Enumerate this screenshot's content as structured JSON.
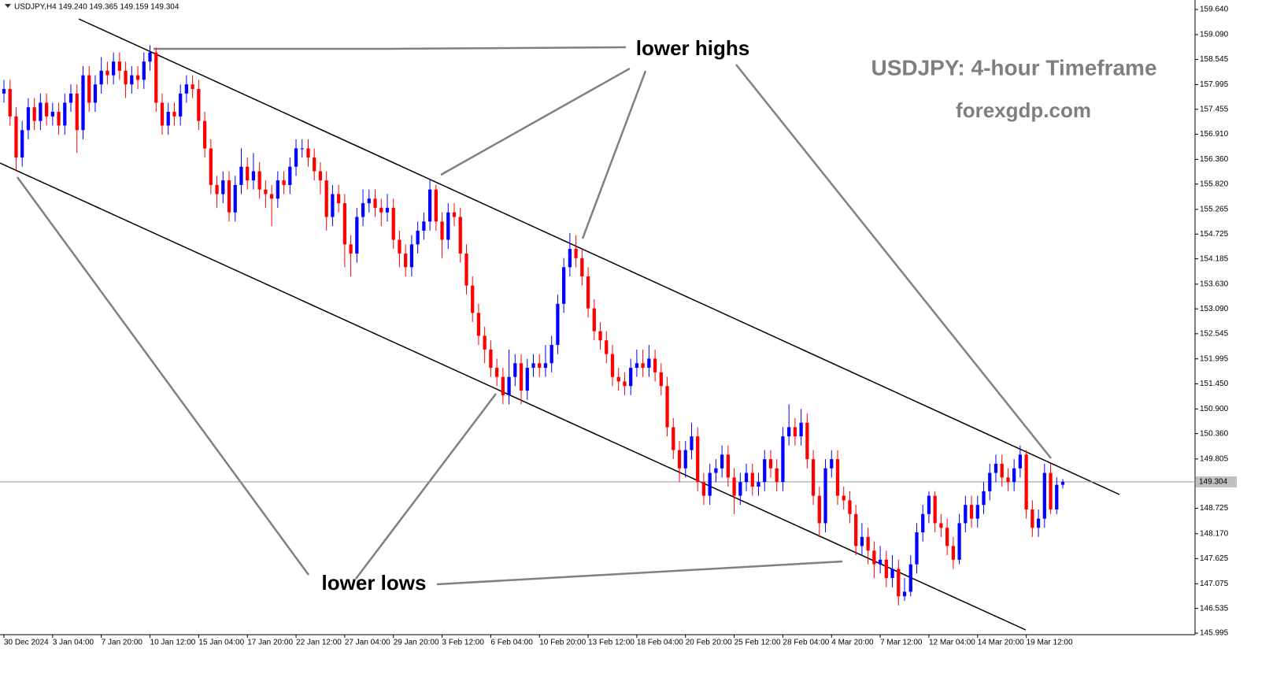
{
  "chart_data": {
    "type": "candlestick",
    "header": "USDJPY,H4  149.240 149.365 149.159 149.304",
    "title": "USDJPY: 4-hour Timeframe",
    "subtitle": "forexgdp.com",
    "annotations": [
      "lower highs",
      "lower lows"
    ],
    "up_color": "#0000ff",
    "down_color": "#ff0000",
    "ylim": [
      145.995,
      159.795
    ],
    "yticks": [
      {
        "value": 159.64,
        "label": "159.640"
      },
      {
        "value": 159.09,
        "label": "159.090"
      },
      158.545,
      157.995,
      157.455,
      {
        "value": 156.91,
        "label": "156.910"
      },
      {
        "value": 156.36,
        "label": "156.360"
      },
      {
        "value": 155.82,
        "label": "155.820"
      },
      155.265,
      154.725,
      154.185,
      {
        "value": 153.63,
        "label": "153.630"
      },
      {
        "value": 153.09,
        "label": "153.090"
      },
      152.545,
      151.995,
      {
        "value": 151.45,
        "label": "151.450"
      },
      {
        "value": 150.9,
        "label": "150.900"
      },
      {
        "value": 150.36,
        "label": "150.360"
      },
      149.805,
      148.725,
      {
        "value": 148.17,
        "label": "148.170"
      },
      147.625,
      147.075,
      146.535,
      145.995
    ],
    "last_price": 149.304,
    "categories": [
      "30 Dec 2024",
      null,
      null,
      null,
      null,
      null,
      null,
      null,
      "3 Jan 04:00",
      null,
      null,
      null,
      null,
      null,
      null,
      null,
      "7 Jan 20:00",
      null,
      null,
      null,
      null,
      null,
      null,
      null,
      "10 Jan 12:00",
      null,
      null,
      null,
      null,
      null,
      null,
      null,
      "15 Jan 04:00",
      null,
      null,
      null,
      null,
      null,
      null,
      null,
      "17 Jan 20:00",
      null,
      null,
      null,
      null,
      null,
      null,
      null,
      "22 Jan 12:00",
      null,
      null,
      null,
      null,
      null,
      null,
      null,
      "27 Jan 04:00",
      null,
      null,
      null,
      null,
      null,
      null,
      null,
      "29 Jan 20:00",
      null,
      null,
      null,
      null,
      null,
      null,
      null,
      "3 Feb 12:00",
      null,
      null,
      null,
      null,
      null,
      null,
      null,
      "6 Feb 04:00",
      null,
      null,
      null,
      null,
      null,
      null,
      null,
      "10 Feb 20:00",
      null,
      null,
      null,
      null,
      null,
      null,
      null,
      "13 Feb 12:00",
      null,
      null,
      null,
      null,
      null,
      null,
      null,
      "18 Feb 04:00",
      null,
      null,
      null,
      null,
      null,
      null,
      null,
      "20 Feb 20:00",
      null,
      null,
      null,
      null,
      null,
      null,
      null,
      "25 Feb 12:00",
      null,
      null,
      null,
      null,
      null,
      null,
      null,
      "28 Feb 04:00",
      null,
      null,
      null,
      null,
      null,
      null,
      null,
      "4 Mar 20:00",
      null,
      null,
      null,
      null,
      null,
      null,
      null,
      "7 Mar 12:00",
      null,
      null,
      null,
      null,
      null,
      null,
      null,
      "12 Mar 04:00",
      null,
      null,
      null,
      null,
      null,
      null,
      null,
      "14 Mar 20:00",
      null,
      null,
      null,
      null,
      null,
      null,
      null,
      "19 Mar 12:00",
      null,
      null,
      null,
      null,
      null,
      null
    ],
    "open": [
      157.8,
      157.9,
      157.3,
      156.4,
      157.0,
      157.5,
      157.2,
      157.6,
      157.3,
      157.4,
      157.1,
      157.6,
      157.8,
      157.0,
      158.2,
      157.6,
      158.0,
      158.3,
      158.2,
      158.5,
      158.3,
      158.0,
      158.2,
      158.1,
      158.5,
      158.7,
      157.6,
      157.1,
      157.4,
      157.3,
      157.8,
      158.0,
      157.9,
      157.2,
      156.6,
      155.8,
      155.6,
      155.9,
      155.2,
      155.8,
      156.2,
      155.9,
      156.1,
      155.7,
      155.6,
      155.5,
      155.9,
      155.8,
      156.2,
      156.6,
      156.6,
      156.4,
      156.1,
      155.9,
      155.1,
      155.6,
      155.4,
      154.5,
      154.3,
      155.1,
      155.4,
      155.5,
      155.3,
      155.2,
      155.3,
      154.6,
      154.3,
      154.0,
      154.5,
      154.8,
      155.0,
      155.7,
      155.0,
      154.6,
      155.2,
      155.1,
      154.3,
      153.6,
      153.0,
      152.5,
      152.2,
      151.8,
      151.6,
      151.2,
      151.6,
      151.9,
      151.3,
      151.8,
      151.9,
      151.8,
      151.9,
      152.3,
      153.2,
      154.0,
      154.4,
      154.2,
      153.8,
      153.1,
      152.6,
      152.4,
      152.1,
      151.6,
      151.5,
      151.4,
      151.8,
      151.9,
      151.8,
      152.0,
      151.7,
      151.4,
      150.5,
      150.0,
      149.6,
      150.0,
      150.3,
      149.3,
      149.0,
      149.5,
      149.6,
      149.9,
      149.4,
      149.0,
      149.3,
      149.5,
      149.2,
      149.3,
      149.8,
      149.6,
      149.3,
      150.3,
      150.5,
      150.3,
      150.6,
      149.8,
      149.0,
      148.4,
      149.6,
      149.8,
      149.0,
      148.9,
      148.6,
      147.9,
      148.1,
      147.8,
      147.5,
      147.6,
      147.2,
      147.4,
      146.8,
      146.9,
      147.5,
      148.2,
      148.6,
      149.0,
      148.4,
      148.3,
      147.9,
      147.6,
      148.4,
      148.8,
      148.5,
      148.8,
      149.1,
      149.5,
      149.7,
      149.4,
      149.3,
      149.6,
      149.9,
      148.7,
      148.3,
      148.5,
      149.5,
      148.7,
      149.24
    ],
    "high": [
      158.1,
      158.1,
      157.5,
      157.2,
      157.7,
      157.7,
      157.8,
      157.8,
      157.6,
      157.6,
      157.8,
      158.0,
      158.0,
      158.4,
      158.4,
      158.2,
      158.6,
      158.5,
      158.7,
      158.7,
      158.5,
      158.4,
      158.4,
      158.7,
      158.86,
      158.8,
      157.8,
      157.6,
      157.6,
      158.0,
      158.2,
      158.2,
      158.1,
      157.4,
      156.8,
      156.0,
      156.1,
      156.1,
      156.0,
      156.6,
      156.4,
      156.5,
      156.3,
      155.9,
      155.8,
      156.1,
      156.1,
      156.4,
      156.8,
      156.8,
      156.8,
      156.6,
      156.3,
      156.1,
      155.8,
      155.8,
      155.6,
      154.7,
      155.3,
      155.7,
      155.7,
      155.7,
      155.5,
      155.6,
      155.5,
      154.8,
      154.5,
      154.7,
      155.0,
      155.2,
      155.9,
      155.8,
      155.2,
      155.4,
      155.4,
      155.3,
      154.5,
      153.8,
      153.2,
      152.7,
      152.4,
      152.0,
      151.8,
      152.2,
      152.1,
      152.1,
      152.0,
      152.1,
      152.1,
      152.3,
      152.5,
      153.4,
      154.2,
      154.75,
      154.7,
      154.4,
      154.0,
      153.3,
      152.8,
      152.6,
      152.3,
      151.8,
      151.7,
      152.0,
      152.2,
      152.2,
      152.3,
      152.2,
      151.9,
      151.6,
      150.7,
      150.2,
      150.2,
      150.6,
      150.5,
      149.5,
      149.7,
      149.8,
      150.1,
      150.1,
      149.6,
      149.5,
      149.7,
      149.7,
      149.5,
      150.0,
      150.0,
      149.8,
      150.5,
      151.0,
      150.7,
      150.9,
      150.8,
      150.0,
      149.2,
      149.8,
      150.0,
      150.0,
      149.2,
      149.1,
      148.8,
      148.4,
      148.3,
      148.0,
      147.9,
      147.8,
      147.7,
      147.6,
      147.2,
      147.7,
      148.4,
      148.8,
      149.1,
      149.1,
      148.6,
      148.5,
      148.1,
      148.6,
      149.0,
      149.0,
      149.0,
      149.3,
      149.7,
      149.9,
      149.9,
      149.6,
      149.8,
      150.1,
      150.0,
      148.9,
      148.7,
      149.7,
      149.7,
      149.4,
      149.365
    ],
    "low": [
      157.6,
      157.1,
      156.1,
      156.2,
      156.8,
      157.0,
      157.0,
      157.1,
      157.1,
      156.9,
      156.9,
      157.4,
      156.5,
      156.8,
      157.4,
      157.4,
      157.8,
      158.0,
      158.0,
      158.1,
      157.7,
      157.8,
      157.9,
      157.9,
      158.3,
      157.4,
      156.9,
      156.9,
      157.1,
      157.1,
      157.6,
      157.7,
      157.0,
      156.4,
      155.6,
      155.3,
      155.4,
      155.0,
      155.0,
      155.6,
      155.7,
      155.7,
      155.5,
      155.3,
      154.9,
      155.3,
      155.6,
      155.6,
      156.0,
      156.4,
      156.2,
      155.9,
      155.6,
      154.8,
      154.9,
      155.2,
      154.0,
      153.8,
      154.1,
      154.9,
      155.2,
      155.1,
      154.9,
      155.0,
      154.4,
      154.0,
      153.8,
      153.8,
      154.3,
      154.6,
      154.8,
      154.8,
      154.2,
      154.4,
      154.9,
      154.1,
      153.4,
      152.8,
      152.3,
      151.9,
      151.6,
      151.4,
      151.0,
      151.0,
      151.4,
      151.0,
      151.1,
      151.6,
      151.6,
      151.6,
      151.7,
      152.1,
      153.0,
      153.8,
      154.0,
      153.6,
      152.9,
      152.4,
      152.2,
      151.9,
      151.4,
      151.3,
      151.2,
      151.2,
      151.6,
      151.6,
      151.6,
      151.5,
      151.2,
      150.3,
      149.8,
      149.3,
      149.4,
      149.8,
      149.1,
      148.8,
      148.8,
      149.3,
      149.4,
      149.2,
      148.6,
      148.8,
      149.1,
      149.0,
      149.0,
      149.1,
      149.4,
      149.1,
      149.1,
      150.1,
      150.1,
      150.1,
      149.6,
      148.8,
      148.1,
      148.2,
      149.4,
      148.8,
      148.7,
      148.4,
      147.7,
      147.7,
      147.5,
      147.2,
      147.3,
      147.0,
      147.0,
      146.6,
      146.7,
      146.8,
      147.3,
      148.0,
      148.4,
      148.2,
      148.1,
      147.7,
      147.4,
      147.5,
      148.2,
      148.3,
      148.3,
      148.6,
      148.9,
      149.3,
      149.2,
      149.1,
      149.1,
      149.4,
      148.5,
      148.1,
      148.1,
      148.3,
      148.6,
      148.6,
      149.159
    ],
    "close": [
      157.9,
      157.3,
      156.4,
      157.0,
      157.5,
      157.2,
      157.6,
      157.3,
      157.4,
      157.1,
      157.6,
      157.8,
      157.0,
      158.2,
      157.6,
      158.0,
      158.3,
      158.2,
      158.5,
      158.3,
      158.0,
      158.2,
      158.1,
      158.5,
      158.7,
      157.6,
      157.1,
      157.4,
      157.3,
      157.8,
      158.0,
      157.9,
      157.2,
      156.6,
      155.8,
      155.6,
      155.9,
      155.2,
      155.8,
      156.2,
      155.9,
      156.1,
      155.7,
      155.6,
      155.5,
      155.9,
      155.8,
      156.2,
      156.6,
      156.6,
      156.4,
      156.1,
      155.9,
      155.1,
      155.6,
      155.4,
      154.5,
      154.3,
      155.1,
      155.4,
      155.5,
      155.3,
      155.2,
      155.3,
      154.6,
      154.3,
      154.0,
      154.5,
      154.8,
      155.0,
      155.7,
      155.0,
      154.6,
      155.2,
      155.1,
      154.3,
      153.6,
      153.0,
      152.5,
      152.2,
      151.8,
      151.6,
      151.2,
      151.6,
      151.9,
      151.3,
      151.8,
      151.9,
      151.8,
      151.9,
      152.3,
      153.2,
      154.0,
      154.4,
      154.2,
      153.8,
      153.1,
      152.6,
      152.4,
      152.1,
      151.6,
      151.5,
      151.4,
      151.8,
      151.9,
      151.8,
      152.0,
      151.7,
      151.4,
      150.5,
      150.0,
      149.6,
      150.0,
      150.3,
      149.3,
      149.0,
      149.5,
      149.6,
      149.9,
      149.4,
      149.0,
      149.3,
      149.5,
      149.2,
      149.3,
      149.8,
      149.6,
      149.3,
      150.3,
      150.5,
      150.3,
      150.6,
      149.8,
      149.0,
      148.4,
      149.6,
      149.8,
      149.0,
      148.9,
      148.6,
      147.9,
      148.1,
      147.8,
      147.5,
      147.6,
      147.2,
      147.4,
      146.8,
      146.9,
      147.5,
      148.2,
      148.6,
      149.0,
      148.4,
      148.3,
      147.9,
      147.6,
      148.4,
      148.8,
      148.5,
      148.8,
      149.1,
      149.5,
      149.7,
      149.4,
      149.3,
      149.6,
      149.9,
      148.7,
      148.3,
      148.5,
      149.5,
      148.7,
      149.24,
      149.304
    ]
  }
}
